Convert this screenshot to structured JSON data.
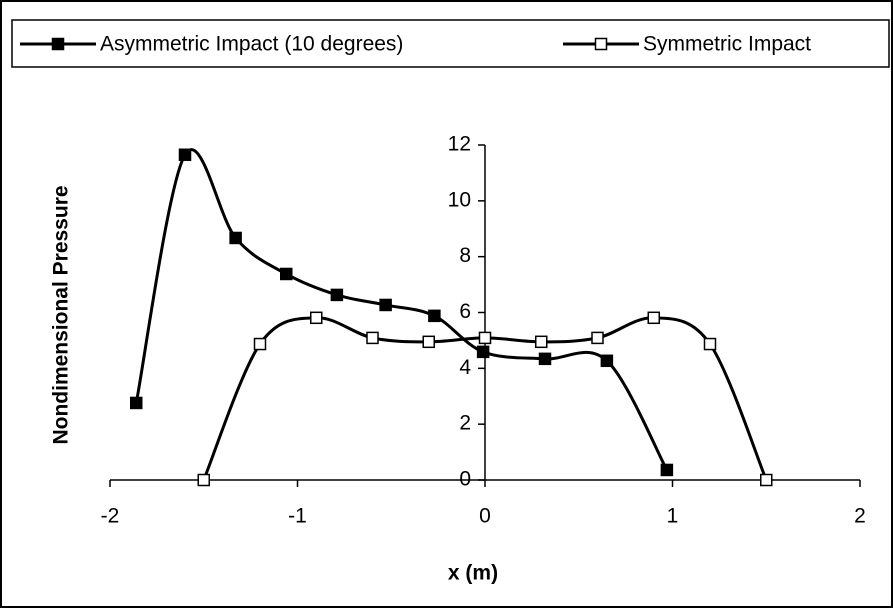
{
  "chart_data": {
    "type": "line",
    "xlabel": "x (m)",
    "ylabel": "Nondimensional Pressure",
    "xlim": [
      -2,
      2
    ],
    "xticks": [
      -2,
      -1,
      0,
      1,
      2
    ],
    "ylim": [
      0,
      12
    ],
    "yticks": [
      0,
      2,
      4,
      6,
      8,
      10,
      12
    ],
    "legend": "top",
    "series": [
      {
        "name": "Asymmetric Impact (10 degrees)",
        "color": "#000000",
        "marker_fill": "#000000",
        "x": [
          -1.86,
          -1.6,
          -1.33,
          -1.06,
          -0.79,
          -0.53,
          -0.27,
          -0.01,
          0.32,
          0.65,
          0.97
        ],
        "values": [
          2.76,
          11.65,
          8.67,
          7.38,
          6.63,
          6.27,
          5.88,
          4.59,
          4.34,
          4.27,
          0.36
        ]
      },
      {
        "name": "Symmetric Impact",
        "color": "#000000",
        "marker_fill": "#ffffff",
        "x": [
          -1.5,
          -1.2,
          -0.9,
          -0.6,
          -0.3,
          0,
          0.3,
          0.6,
          0.9,
          1.2,
          1.5
        ],
        "values": [
          0,
          4.87,
          5.81,
          5.09,
          4.95,
          5.09,
          4.95,
          5.09,
          5.81,
          4.87,
          0
        ]
      }
    ]
  }
}
